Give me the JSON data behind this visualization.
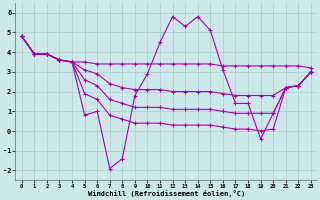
{
  "xlabel": "Windchill (Refroidissement éolien,°C)",
  "background_color": "#cde8ea",
  "line_color": "#aa00aa",
  "grid_color": "#aacccc",
  "xlim": [
    -0.5,
    23.5
  ],
  "ylim": [
    -2.5,
    6.5
  ],
  "xticks": [
    0,
    1,
    2,
    3,
    4,
    5,
    6,
    7,
    8,
    9,
    10,
    11,
    12,
    13,
    14,
    15,
    16,
    17,
    18,
    19,
    20,
    21,
    22,
    23
  ],
  "yticks": [
    -2,
    -1,
    0,
    1,
    2,
    3,
    4,
    5,
    6
  ],
  "lines": [
    [
      4.8,
      3.9,
      3.9,
      3.6,
      3.5,
      0.8,
      1.0,
      -1.9,
      -1.4,
      1.8,
      2.9,
      4.5,
      5.8,
      5.3,
      5.8,
      5.1,
      3.1,
      1.4,
      1.4,
      -0.4,
      0.9,
      2.2,
      2.3,
      3.0
    ],
    [
      4.8,
      3.9,
      3.9,
      3.6,
      3.5,
      3.5,
      3.4,
      3.4,
      3.4,
      3.4,
      3.4,
      3.4,
      3.4,
      3.4,
      3.4,
      3.4,
      3.3,
      3.3,
      3.3,
      3.3,
      3.3,
      3.3,
      3.3,
      3.2
    ],
    [
      4.8,
      3.9,
      3.9,
      3.6,
      3.5,
      3.1,
      2.9,
      2.4,
      2.2,
      2.1,
      2.1,
      2.1,
      2.0,
      2.0,
      2.0,
      2.0,
      1.9,
      1.8,
      1.8,
      1.8,
      1.8,
      2.2,
      2.3,
      3.0
    ],
    [
      4.8,
      3.9,
      3.9,
      3.6,
      3.5,
      2.6,
      2.3,
      1.6,
      1.4,
      1.2,
      1.2,
      1.2,
      1.1,
      1.1,
      1.1,
      1.1,
      1.0,
      0.9,
      0.9,
      0.9,
      0.9,
      2.2,
      2.3,
      3.0
    ],
    [
      4.8,
      3.9,
      3.9,
      3.6,
      3.5,
      1.9,
      1.6,
      0.8,
      0.6,
      0.4,
      0.4,
      0.4,
      0.3,
      0.3,
      0.3,
      0.3,
      0.2,
      0.1,
      0.1,
      -0.0,
      0.1,
      2.2,
      2.3,
      3.0
    ]
  ]
}
